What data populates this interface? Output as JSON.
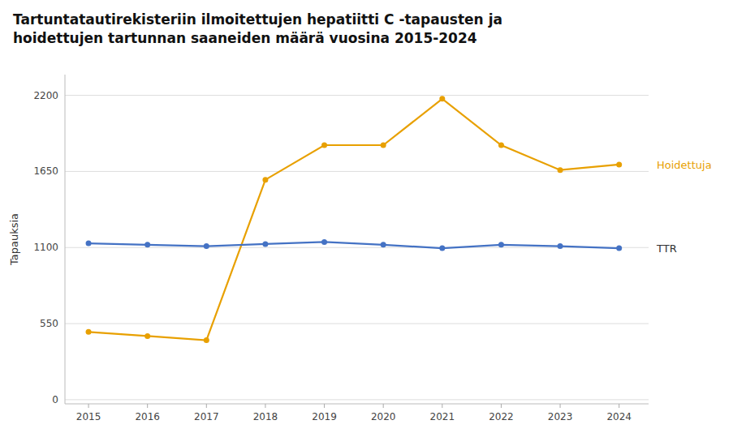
{
  "chart_data": {
    "type": "line",
    "title": "Tartuntatautirekisteriin ilmoitettujen hepatiitti C -tapausten ja\nhoidettujen tartunnan saaneiden määrä vuosina 2015-2024",
    "y_label": "Tapauksia",
    "x": [
      2015,
      2016,
      2017,
      2018,
      2019,
      2020,
      2021,
      2022,
      2023,
      2024
    ],
    "series": [
      {
        "name": "Hoidettuja",
        "color": "#E8A000",
        "marker": "circle",
        "values": [
          490,
          460,
          430,
          1590,
          1840,
          1840,
          2175,
          1840,
          1660,
          1700
        ]
      },
      {
        "name": "TTR",
        "color": "#4472C4",
        "marker": "circle",
        "values": [
          1130,
          1120,
          1110,
          1125,
          1140,
          1120,
          1095,
          1120,
          1110,
          1095
        ]
      }
    ],
    "xlim": [
      2014.6,
      2024.5
    ],
    "xticks": [
      2015,
      2016,
      2017,
      2018,
      2019,
      2020,
      2021,
      2022,
      2023,
      2024
    ],
    "ylim": [
      -30,
      2350
    ],
    "yticks": [
      0,
      550,
      1100,
      1650,
      2200
    ],
    "grid": true
  }
}
